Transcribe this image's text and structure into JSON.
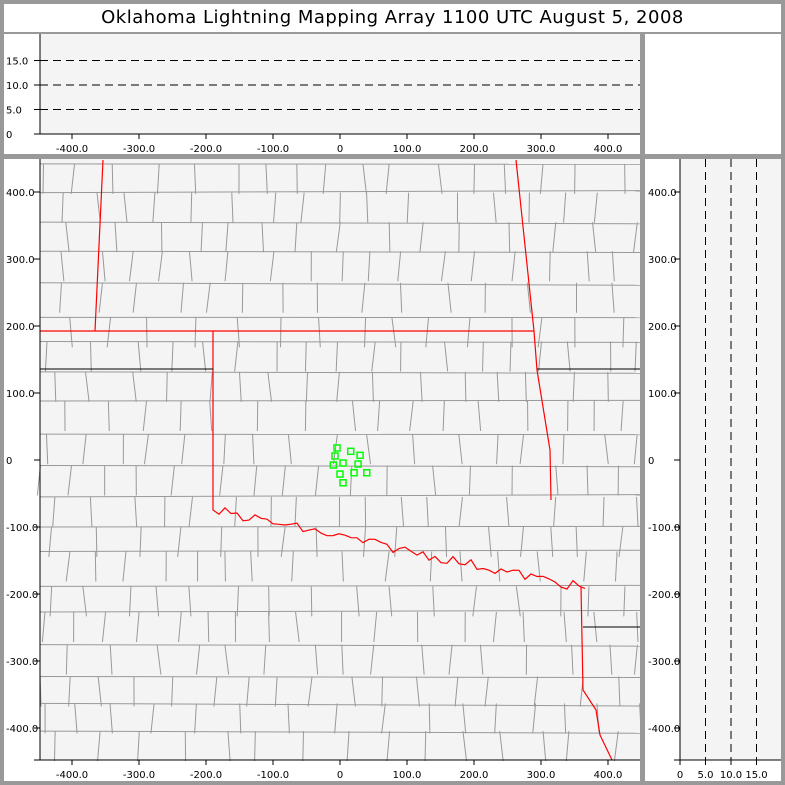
{
  "title": "Oklahoma Lightning Mapping Array   1100 UTC  August 5, 2008",
  "colors": {
    "background": "#f4f4f4",
    "frame": "#999999",
    "state_border": "#ff0000",
    "county_border": "#999999",
    "source": "#00ff00"
  },
  "plan_view": {
    "x_ticks": [
      "-400.0",
      "-300.0",
      "-200.0",
      "-100.0",
      "0",
      "100.0",
      "200.0",
      "300.0",
      "400.0"
    ],
    "y_ticks": [
      "400.0",
      "300.0",
      "200.0",
      "100.0",
      "0",
      "-100.0",
      "-200.0",
      "-300.0",
      "-400.0"
    ],
    "x_range_km": [
      -447,
      447
    ],
    "y_range_km": [
      -447,
      447
    ]
  },
  "altitude_top": {
    "y_ticks": [
      "0",
      "5.0",
      "10.0",
      "15.0"
    ],
    "dashed_levels": [
      5,
      10,
      15
    ],
    "y_range": [
      0,
      20
    ]
  },
  "altitude_right": {
    "x_ticks": [
      "0",
      "5.0",
      "10.0",
      "15.0"
    ],
    "dashed_levels": [
      5,
      10,
      15
    ],
    "x_range": [
      0,
      20
    ]
  },
  "sources": [
    [
      -4.5,
      18
    ],
    [
      16,
      13
    ],
    [
      30,
      7
    ],
    [
      -7.5,
      6
    ],
    [
      -10,
      -7.5
    ],
    [
      4.5,
      -4.5
    ],
    [
      27,
      -6
    ],
    [
      0,
      -21
    ],
    [
      21,
      -19
    ],
    [
      40,
      -19
    ],
    [
      4.5,
      -34
    ]
  ]
}
